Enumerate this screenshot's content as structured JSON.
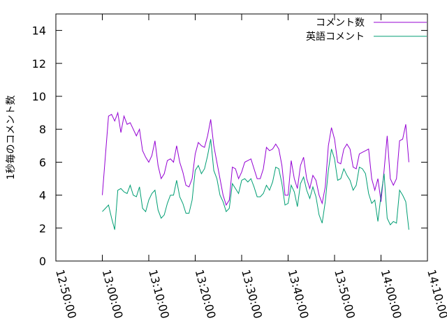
{
  "chart_data": {
    "type": "line",
    "title": "",
    "xlabel": "",
    "ylabel": "1秒毎のコメント数",
    "xlim": [
      "12:50:00",
      "14:10:00"
    ],
    "ylim": [
      0,
      15
    ],
    "x_tick_labels": [
      "12:50:00",
      "13:00:00",
      "13:10:00",
      "13:20:00",
      "13:30:00",
      "13:40:00",
      "13:50:00",
      "14:00:00",
      "14:10:00"
    ],
    "y_tick_labels": [
      "0",
      "2",
      "4",
      "6",
      "8",
      "10",
      "12",
      "14"
    ],
    "y_ticks": [
      0,
      2,
      4,
      6,
      8,
      10,
      12,
      14
    ],
    "grid": false,
    "legend_position": "top-right",
    "sample_interval_seconds": 40,
    "x_start": "13:00:00",
    "series": [
      {
        "name": "コメント数",
        "color": "#9400d3",
        "values": [
          4.0,
          6.4,
          8.8,
          8.9,
          8.5,
          9.0,
          7.8,
          8.8,
          8.3,
          8.4,
          8.0,
          7.6,
          8.0,
          6.7,
          6.3,
          6.0,
          6.4,
          7.3,
          5.8,
          5.0,
          5.3,
          6.1,
          6.2,
          6.0,
          7.0,
          6.0,
          5.4,
          4.6,
          4.5,
          5.0,
          6.5,
          7.2,
          7.0,
          6.9,
          7.6,
          8.6,
          7.0,
          6.0,
          5.0,
          4.0,
          3.4,
          3.7,
          5.7,
          5.6,
          5.0,
          5.4,
          6.0,
          6.1,
          6.2,
          5.6,
          5.0,
          5.0,
          5.6,
          6.9,
          6.7,
          6.8,
          7.1,
          6.8,
          5.8,
          4.0,
          4.0,
          6.1,
          5.0,
          4.4,
          5.8,
          6.3,
          5.0,
          4.4,
          5.2,
          4.9,
          4.0,
          3.5,
          4.5,
          7.0,
          8.1,
          7.4,
          6.0,
          5.9,
          6.8,
          7.1,
          6.8,
          5.7,
          5.6,
          6.5,
          6.6,
          6.7,
          6.8,
          5.0,
          4.3,
          5.0,
          3.6,
          5.5,
          7.6,
          5.0,
          4.6,
          5.0,
          7.3,
          7.4,
          8.3,
          6.0
        ]
      },
      {
        "name": "英語コメント",
        "color": "#009e73",
        "values": [
          3.0,
          3.2,
          3.4,
          2.6,
          1.9,
          4.3,
          4.4,
          4.2,
          4.1,
          4.6,
          4.0,
          3.9,
          4.5,
          3.2,
          3.0,
          3.7,
          4.1,
          4.3,
          3.1,
          2.6,
          2.8,
          3.5,
          4.0,
          4.0,
          4.9,
          3.9,
          3.5,
          2.9,
          2.9,
          3.7,
          5.5,
          5.8,
          5.3,
          5.6,
          6.4,
          7.4,
          5.5,
          5.0,
          4.0,
          3.6,
          3.0,
          3.2,
          4.7,
          4.4,
          4.1,
          4.9,
          5.0,
          4.8,
          5.0,
          4.5,
          3.9,
          3.9,
          4.1,
          4.6,
          4.3,
          4.8,
          5.7,
          5.6,
          4.7,
          3.4,
          3.5,
          4.6,
          4.2,
          3.3,
          4.7,
          5.1,
          4.3,
          3.8,
          4.5,
          3.9,
          2.8,
          2.3,
          3.6,
          5.5,
          6.8,
          6.2,
          4.9,
          5.0,
          5.6,
          5.2,
          4.9,
          4.3,
          4.6,
          5.7,
          5.6,
          5.3,
          4.1,
          3.5,
          3.7,
          2.4,
          4.0,
          5.3,
          2.6,
          2.2,
          2.4,
          2.3,
          4.3,
          4.0,
          3.6,
          1.9
        ]
      }
    ]
  }
}
